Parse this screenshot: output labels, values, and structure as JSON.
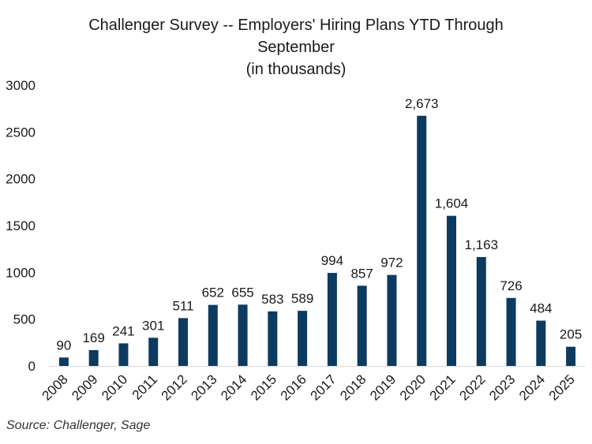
{
  "chart_data": {
    "type": "bar",
    "title_lines": [
      "Challenger Survey -- Employers' Hiring Plans YTD Through",
      "September",
      "(in thousands)"
    ],
    "categories": [
      "2008",
      "2009",
      "2010",
      "2011",
      "2012",
      "2013",
      "2014",
      "2015",
      "2016",
      "2017",
      "2018",
      "2019",
      "2020",
      "2021",
      "2022",
      "2023",
      "2024",
      "2025"
    ],
    "values": [
      90,
      169,
      241,
      301,
      511,
      652,
      655,
      583,
      589,
      994,
      857,
      972,
      2673,
      1604,
      1163,
      726,
      484,
      205
    ],
    "data_labels": [
      "90",
      "169",
      "241",
      "301",
      "511",
      "652",
      "655",
      "583",
      "589",
      "994",
      "857",
      "972",
      "2,673",
      "1,604",
      "1,163",
      "726",
      "484",
      "205"
    ],
    "y_ticks": [
      0,
      500,
      1000,
      1500,
      2000,
      2500,
      3000
    ],
    "ylim": [
      0,
      3000
    ],
    "grid": false,
    "legend": false,
    "bar_color": "#0d3a5f"
  },
  "source": "Source: Challenger, Sage"
}
